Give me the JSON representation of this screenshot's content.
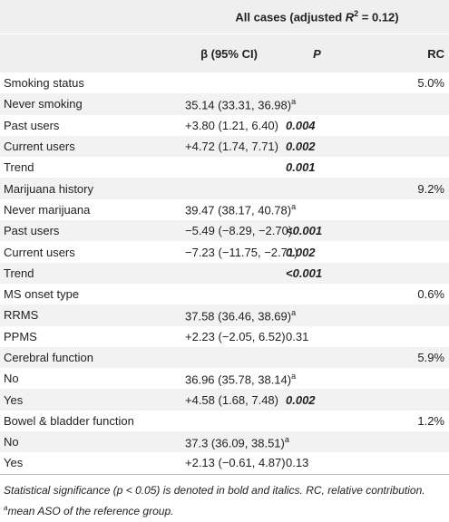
{
  "header": {
    "title": {
      "before": "All cases (adjusted ",
      "var": "R",
      "sup": "2",
      "after": " = 0.12)"
    },
    "columns": [
      "β (95% CI)",
      "P",
      "RC"
    ]
  },
  "rows": [
    {
      "label": "Smoking status",
      "rc": "5.0%"
    },
    {
      "label": "Never smoking",
      "beta": "35.14 (33.31, 36.98)",
      "note": "a"
    },
    {
      "label": "Past users",
      "beta": "+3.80 (1.21, 6.40)",
      "p": "0.004",
      "significant": true
    },
    {
      "label": "Current users",
      "beta": "+4.72 (1.74, 7.71)",
      "p": "0.002",
      "significant": true
    },
    {
      "label": "Trend",
      "p": "0.001",
      "significant": true
    },
    {
      "label": "Marijuana history",
      "rc": "9.2%"
    },
    {
      "label": "Never marijuana",
      "beta": "39.47 (38.17, 40.78)",
      "note": "a"
    },
    {
      "label": "Past users",
      "beta": "−5.49 (−8.29, −2.70)",
      "p": "<0.001",
      "significant": true
    },
    {
      "label": "Current users",
      "beta": "−7.23 (−11.75, −2.71)",
      "p": "0.002",
      "significant": true
    },
    {
      "label": "Trend",
      "p": "<0.001",
      "significant": true
    },
    {
      "label": "MS onset type",
      "rc": "0.6%"
    },
    {
      "label": "RRMS",
      "beta": "37.58 (36.46, 38.69)",
      "note": "a"
    },
    {
      "label": "PPMS",
      "beta": "+2.23 (−2.05, 6.52)",
      "p": "0.31",
      "significant": false
    },
    {
      "label": "Cerebral function",
      "rc": "5.9%"
    },
    {
      "label": "No",
      "beta": "36.96 (35.78, 38.14)",
      "note": "a"
    },
    {
      "label": "Yes",
      "beta": "+4.58 (1.68, 7.48)",
      "p": "0.002",
      "significant": true
    },
    {
      "label": "Bowel & bladder function",
      "rc": "1.2%"
    },
    {
      "label": "No",
      "beta": "37.3 (36.09, 38.51)",
      "note": "a"
    },
    {
      "label": "Yes",
      "beta": "+2.13 (−0.61, 4.87)",
      "p": "0.13",
      "significant": false
    }
  ],
  "footnote": {
    "text": "Statistical significance (p < 0.05) is denoted in bold and italics. RC, relative contribution.",
    "marker": "a",
    "note": "mean ASO of the reference group."
  }
}
